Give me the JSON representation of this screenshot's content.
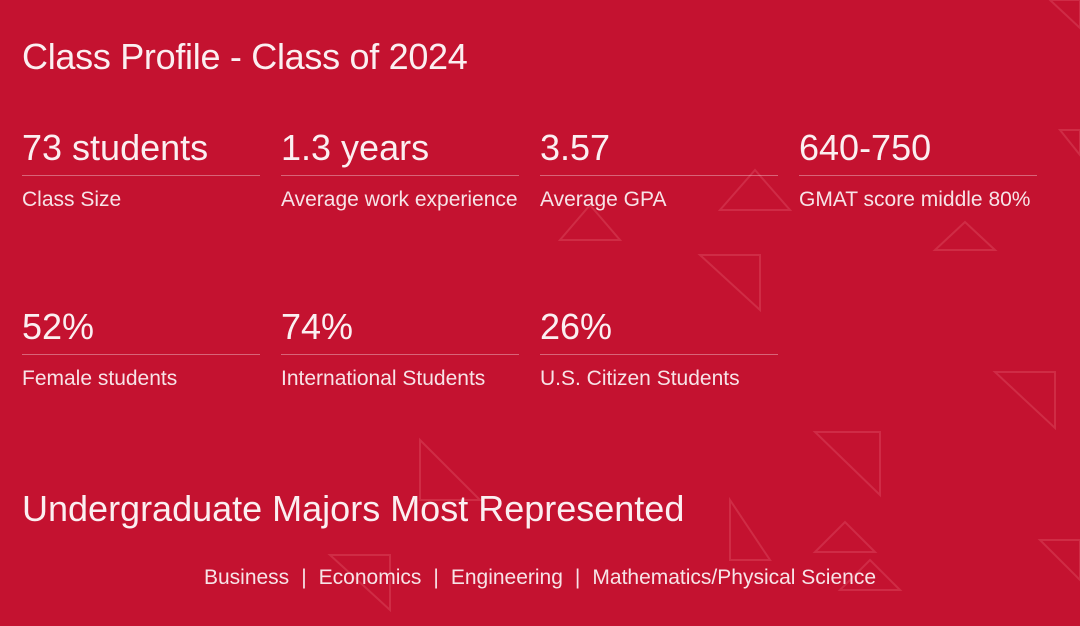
{
  "title": "Class Profile - Class of 2024",
  "stats_row1": [
    {
      "value": "73 students",
      "label": "Class Size"
    },
    {
      "value": "1.3 years",
      "label": "Average work experience"
    },
    {
      "value": "3.57",
      "label": "Average GPA"
    },
    {
      "value": "640-750",
      "label": "GMAT score middle 80%"
    }
  ],
  "stats_row2": [
    {
      "value": "52%",
      "label": "Female students"
    },
    {
      "value": "74%",
      "label": "International Students"
    },
    {
      "value": "26%",
      "label": "U.S. Citizen Students"
    }
  ],
  "majors": {
    "title": "Undergraduate Majors Most Represented",
    "items": [
      "Business",
      "Economics",
      "Engineering",
      "Mathematics/Physical Science"
    ],
    "separator": "|"
  },
  "colors": {
    "background": "#c41230",
    "text": "#fbeff1",
    "decor": "#d84158"
  }
}
